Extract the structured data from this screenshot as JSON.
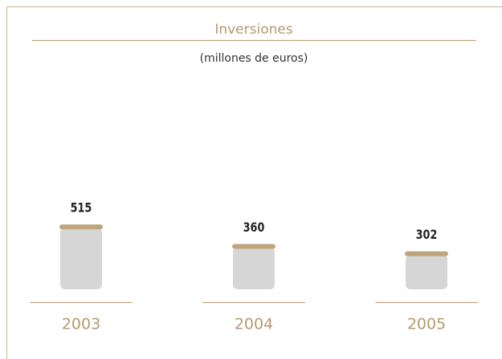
{
  "chart_data": {
    "type": "bar",
    "title": "Inversiones",
    "subtitle": "(millones de euros)",
    "categories": [
      "2003",
      "2004",
      "2005"
    ],
    "values": [
      515,
      360,
      302
    ],
    "color": "#d6d6d6",
    "cap_color": "#bea57b"
  }
}
